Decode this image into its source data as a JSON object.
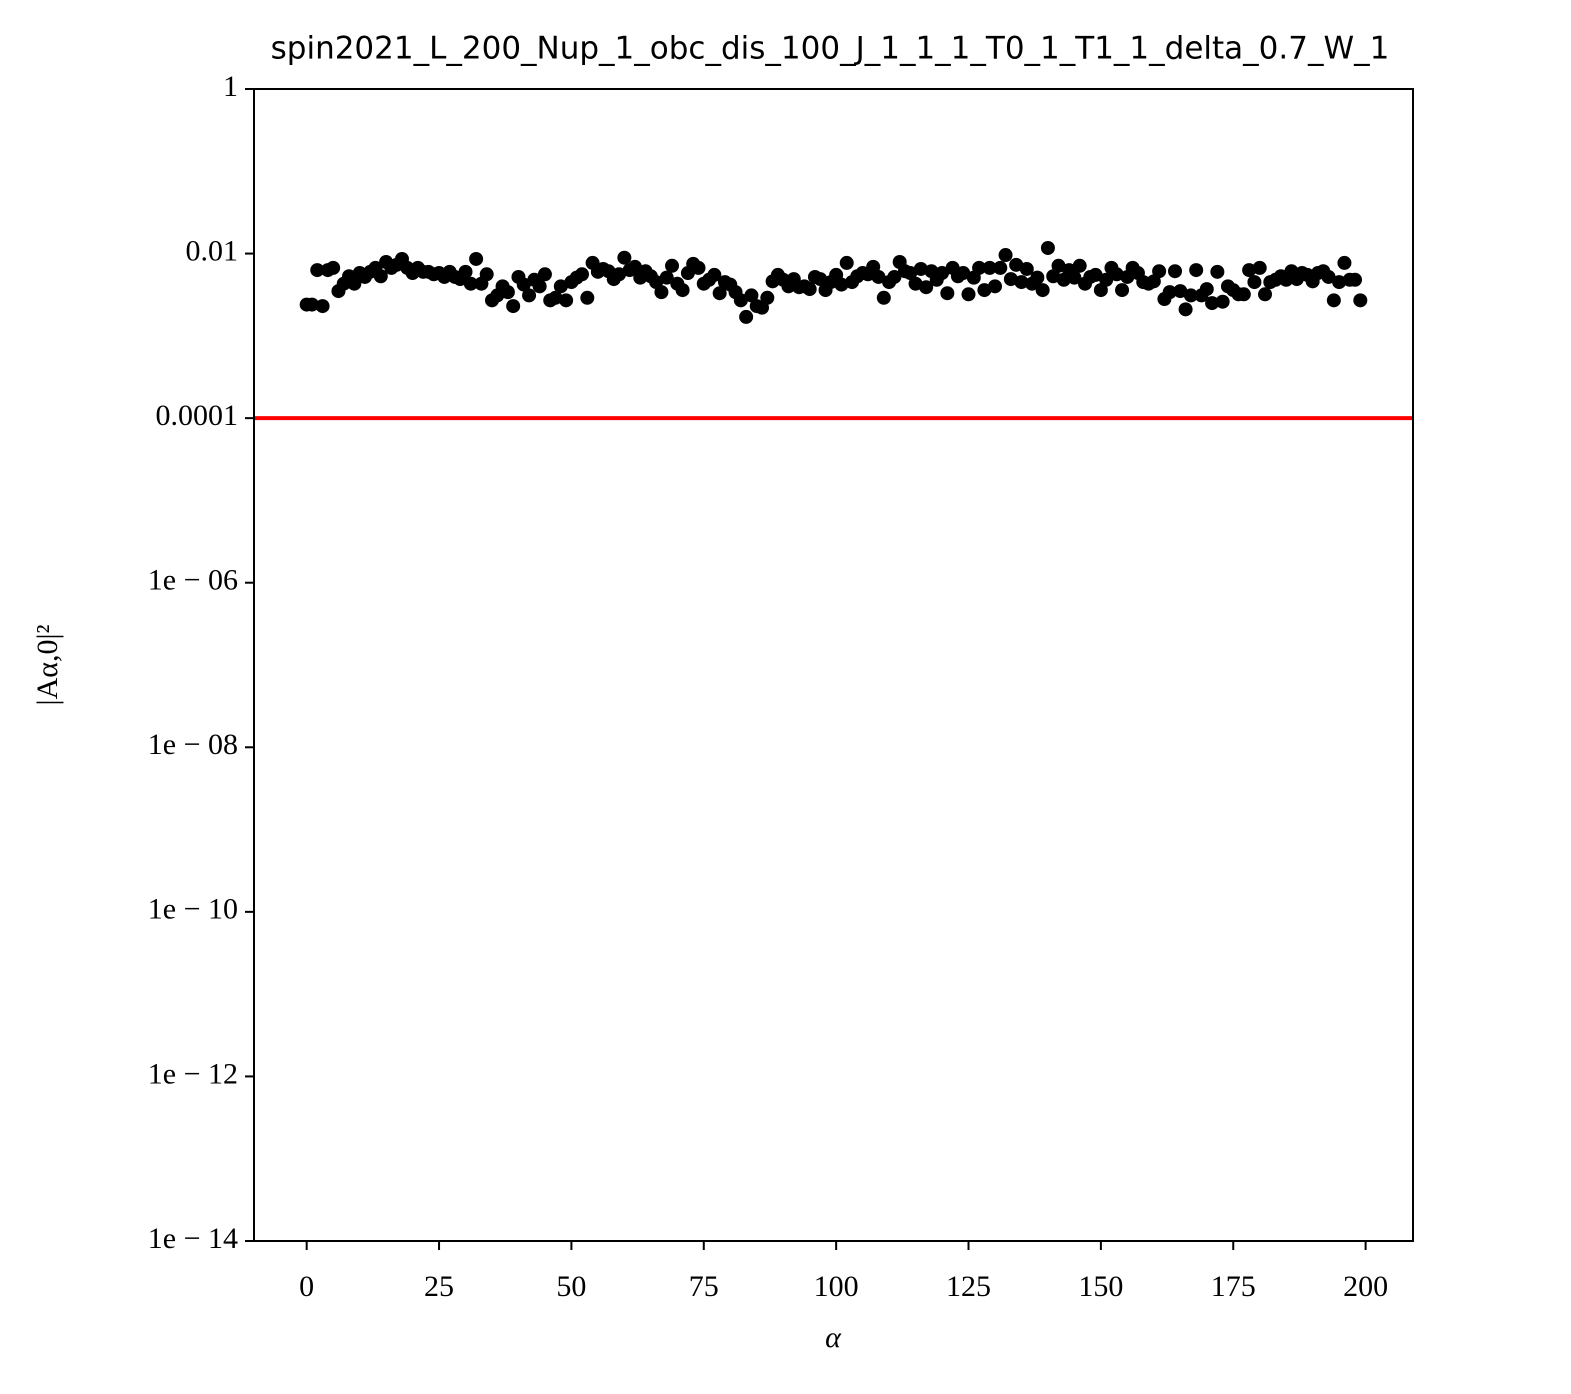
{
  "chart_data": {
    "type": "scatter",
    "title": "spin2021_L_200_Nup_1_obc_dis_100_J_1_1_1_T0_1_T1_1_delta_0.7_W_1",
    "xlabel": "α",
    "ylabel": "|Aα,0|²",
    "color": "#000000",
    "log_y": true,
    "hline": {
      "value": 0.0001,
      "color": "#ff0000"
    },
    "xlim": [
      -9.95,
      208.95
    ],
    "xticks": [
      0,
      25,
      50,
      75,
      100,
      125,
      150,
      175,
      200
    ],
    "ylim": [
      1e-14,
      1
    ],
    "yticks": [
      1,
      0.01,
      0.0001,
      {
        "value": 1e-06,
        "label": "1e − 06"
      },
      {
        "value": 1e-08,
        "label": "1e − 08"
      },
      {
        "value": 1e-10,
        "label": "1e − 10"
      },
      {
        "value": 1e-12,
        "label": "1e − 12"
      },
      {
        "value": 1e-14,
        "label": "1e − 14"
      }
    ],
    "x": [
      0,
      1,
      2,
      3,
      4,
      5,
      6,
      7,
      8,
      9,
      10,
      11,
      12,
      13,
      14,
      15,
      16,
      17,
      18,
      19,
      20,
      21,
      22,
      23,
      24,
      25,
      26,
      27,
      28,
      29,
      30,
      31,
      32,
      33,
      34,
      35,
      36,
      37,
      38,
      39,
      40,
      41,
      42,
      43,
      44,
      45,
      46,
      47,
      48,
      49,
      50,
      51,
      52,
      53,
      54,
      55,
      56,
      57,
      58,
      59,
      60,
      61,
      62,
      63,
      64,
      65,
      66,
      67,
      68,
      69,
      70,
      71,
      72,
      73,
      74,
      75,
      76,
      77,
      78,
      79,
      80,
      81,
      82,
      83,
      84,
      85,
      86,
      87,
      88,
      89,
      90,
      91,
      92,
      93,
      94,
      95,
      96,
      97,
      98,
      99,
      100,
      101,
      102,
      103,
      104,
      105,
      106,
      107,
      108,
      109,
      110,
      111,
      112,
      113,
      114,
      115,
      116,
      117,
      118,
      119,
      120,
      121,
      122,
      123,
      124,
      125,
      126,
      127,
      128,
      129,
      130,
      131,
      132,
      133,
      134,
      135,
      136,
      137,
      138,
      139,
      140,
      141,
      142,
      143,
      144,
      145,
      146,
      147,
      148,
      149,
      150,
      151,
      152,
      153,
      154,
      155,
      156,
      157,
      158,
      159,
      160,
      161,
      162,
      163,
      164,
      165,
      166,
      167,
      168,
      169,
      170,
      171,
      172,
      173,
      174,
      175,
      176,
      177,
      178,
      179,
      180,
      181,
      182,
      183,
      184,
      185,
      186,
      187,
      188,
      189,
      190,
      191,
      192,
      193,
      194,
      195,
      196,
      197,
      198,
      199
    ],
    "values": [
      0.0024,
      0.0024,
      0.0063,
      0.0023,
      0.0063,
      0.0067,
      0.0035,
      0.0043,
      0.0053,
      0.0043,
      0.0058,
      0.0052,
      0.006,
      0.0067,
      0.0053,
      0.0079,
      0.0067,
      0.0073,
      0.0086,
      0.0067,
      0.0058,
      0.0067,
      0.006,
      0.006,
      0.0056,
      0.0058,
      0.0052,
      0.006,
      0.0052,
      0.0049,
      0.006,
      0.0043,
      0.0086,
      0.0043,
      0.0056,
      0.0027,
      0.0031,
      0.004,
      0.0034,
      0.0023,
      0.0052,
      0.0042,
      0.0031,
      0.0048,
      0.004,
      0.0056,
      0.0027,
      0.0029,
      0.004,
      0.0027,
      0.0045,
      0.0051,
      0.0056,
      0.0029,
      0.0077,
      0.006,
      0.0065,
      0.0061,
      0.0049,
      0.0056,
      0.0089,
      0.0063,
      0.0069,
      0.0051,
      0.0061,
      0.0053,
      0.0045,
      0.0034,
      0.0051,
      0.0071,
      0.0043,
      0.0036,
      0.0058,
      0.0075,
      0.0067,
      0.0043,
      0.0048,
      0.0055,
      0.0033,
      0.0045,
      0.0042,
      0.0034,
      0.0027,
      0.0017,
      0.0031,
      0.0023,
      0.0022,
      0.0029,
      0.0046,
      0.0055,
      0.0048,
      0.004,
      0.0049,
      0.0039,
      0.004,
      0.0037,
      0.0052,
      0.0049,
      0.0036,
      0.0045,
      0.0055,
      0.0042,
      0.0077,
      0.0045,
      0.0053,
      0.0058,
      0.0056,
      0.0069,
      0.0052,
      0.0029,
      0.0045,
      0.0052,
      0.0079,
      0.0061,
      0.0058,
      0.0043,
      0.0065,
      0.0039,
      0.0061,
      0.0048,
      0.0058,
      0.0033,
      0.0067,
      0.0053,
      0.0058,
      0.0032,
      0.0051,
      0.0067,
      0.0036,
      0.0067,
      0.004,
      0.0067,
      0.0096,
      0.0049,
      0.0073,
      0.0045,
      0.0065,
      0.0043,
      0.0051,
      0.0036,
      0.0117,
      0.0053,
      0.0071,
      0.0048,
      0.0063,
      0.0051,
      0.0071,
      0.0043,
      0.0052,
      0.0055,
      0.0036,
      0.0048,
      0.0067,
      0.0056,
      0.0036,
      0.0052,
      0.0067,
      0.0058,
      0.0045,
      0.0043,
      0.0046,
      0.0061,
      0.0028,
      0.0034,
      0.0061,
      0.0035,
      0.0021,
      0.0031,
      0.0063,
      0.0031,
      0.0037,
      0.0025,
      0.006,
      0.0026,
      0.004,
      0.0036,
      0.0032,
      0.0032,
      0.0063,
      0.0045,
      0.0067,
      0.0032,
      0.0045,
      0.0048,
      0.0053,
      0.0048,
      0.0061,
      0.0049,
      0.0058,
      0.0055,
      0.0046,
      0.0058,
      0.0061,
      0.0052,
      0.0027,
      0.0045,
      0.0077,
      0.0048,
      0.0048,
      0.0027
    ]
  }
}
